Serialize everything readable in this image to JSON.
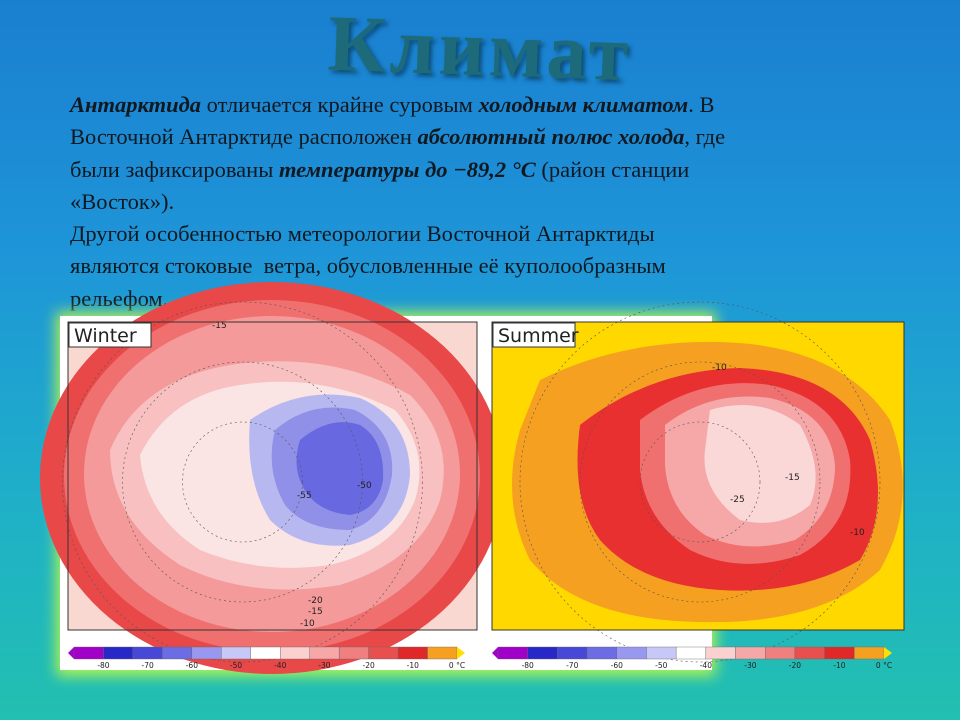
{
  "slide": {
    "title": "Климат",
    "text": {
      "lines": [
        [
          {
            "text": "Антарктида",
            "emphasis": true
          },
          {
            "text": " отличается крайне суровым "
          },
          {
            "text": "холодным климатом",
            "emphasis": true
          },
          {
            "text": ". В"
          }
        ],
        [
          {
            "text": "Восточной Антарктиде расположен "
          },
          {
            "text": "абсолютный полюс холода",
            "emphasis": true
          },
          {
            "text": ", где"
          }
        ],
        [
          {
            "text": "были зафиксированы "
          },
          {
            "text": "температуры до −89,2 °С",
            "emphasis": true
          },
          {
            "text": " (район станции"
          }
        ],
        [
          {
            "text": "«Восток»)."
          }
        ],
        [
          {
            "text": "Другой особенностью метеорологии Восточной Антарктиды"
          }
        ],
        [
          {
            "text": "являются стоковые  ветра, обусловленные её куполообразным"
          }
        ],
        [
          {
            "text": "рельефом."
          }
        ]
      ]
    },
    "maps": [
      {
        "label": "Winter",
        "contour_labels": [
          "-15",
          "-55",
          "-50",
          "-20",
          "-15",
          "-10"
        ],
        "colorbar": [
          "-80",
          "-70",
          "-60",
          "-50",
          "-40",
          "-30",
          "-20",
          "-10",
          "0 °C"
        ]
      },
      {
        "label": "Summer",
        "contour_labels": [
          "-10",
          "-25",
          "-15",
          "-10"
        ],
        "colorbar": [
          "-80",
          "-70",
          "-60",
          "-50",
          "-40",
          "-30",
          "-20",
          "-10",
          "0 °C"
        ]
      }
    ]
  }
}
